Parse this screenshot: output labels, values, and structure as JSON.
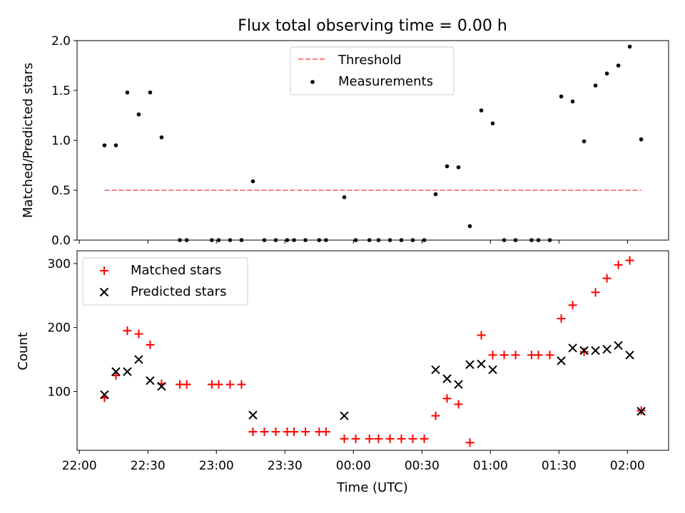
{
  "chart_data": [
    {
      "type": "scatter",
      "title": "Flux total observing time = 0.00 h",
      "ylabel": "Matched/Predicted stars",
      "xlim": [
        "21:59",
        "02:18"
      ],
      "ylim": [
        0,
        2.0
      ],
      "yticks": [
        "0.0",
        "0.5",
        "1.0",
        "1.5",
        "2.0"
      ],
      "legend_position": "top-center",
      "threshold": {
        "name": "Threshold",
        "color": "#ff7f7f",
        "style": "dashed",
        "y": 0.5,
        "x_start": "22:11",
        "x_end": "02:06"
      },
      "series": [
        {
          "name": "Measurements",
          "color": "#000000",
          "marker": "dot",
          "points": [
            [
              "22:11",
              0.95
            ],
            [
              "22:16",
              0.95
            ],
            [
              "22:21",
              1.48
            ],
            [
              "22:26",
              1.26
            ],
            [
              "22:31",
              1.48
            ],
            [
              "22:36",
              1.03
            ],
            [
              "22:44",
              0.0
            ],
            [
              "22:47",
              0.0
            ],
            [
              "22:58",
              0.0
            ],
            [
              "23:01",
              0.0
            ],
            [
              "23:06",
              0.0
            ],
            [
              "23:11",
              0.0
            ],
            [
              "23:16",
              0.59
            ],
            [
              "23:21",
              0.0
            ],
            [
              "23:26",
              0.0
            ],
            [
              "23:31",
              0.0
            ],
            [
              "23:34",
              0.0
            ],
            [
              "23:39",
              0.0
            ],
            [
              "23:45",
              0.0
            ],
            [
              "23:48",
              0.0
            ],
            [
              "23:56",
              0.43
            ],
            [
              "24:01",
              0.0
            ],
            [
              "24:07",
              0.0
            ],
            [
              "24:11",
              0.0
            ],
            [
              "24:16",
              0.0
            ],
            [
              "24:21",
              0.0
            ],
            [
              "24:26",
              0.0
            ],
            [
              "24:31",
              0.0
            ],
            [
              "24:36",
              0.46
            ],
            [
              "24:41",
              0.74
            ],
            [
              "24:46",
              0.73
            ],
            [
              "24:51",
              0.14
            ],
            [
              "24:56",
              1.3
            ],
            [
              "25:01",
              1.17
            ],
            [
              "25:06",
              0.0
            ],
            [
              "25:11",
              0.0
            ],
            [
              "25:18",
              0.0
            ],
            [
              "25:21",
              0.0
            ],
            [
              "25:26",
              0.0
            ],
            [
              "25:31",
              1.44
            ],
            [
              "25:36",
              1.39
            ],
            [
              "25:41",
              0.99
            ],
            [
              "25:46",
              1.55
            ],
            [
              "25:51",
              1.67
            ],
            [
              "25:56",
              1.75
            ],
            [
              "26:01",
              1.94
            ],
            [
              "26:06",
              1.01
            ]
          ]
        }
      ]
    },
    {
      "type": "scatter",
      "xlabel": "Time (UTC)",
      "ylabel": "Count",
      "xlim": [
        "21:59",
        "02:18"
      ],
      "ylim": [
        8,
        320
      ],
      "xticks": [
        "22:00",
        "22:30",
        "23:00",
        "23:30",
        "00:00",
        "00:30",
        "01:00",
        "01:30",
        "02:00"
      ],
      "yticks": [
        "100",
        "200",
        "300"
      ],
      "legend_position": "top-left",
      "series": [
        {
          "name": "Matched stars",
          "color": "#ff0000",
          "marker": "plus",
          "points": [
            [
              "22:11",
              90
            ],
            [
              "22:16",
              125
            ],
            [
              "22:21",
              195
            ],
            [
              "22:26",
              190
            ],
            [
              "22:31",
              173
            ],
            [
              "22:36",
              112
            ],
            [
              "22:44",
              111
            ],
            [
              "22:47",
              111
            ],
            [
              "22:58",
              111
            ],
            [
              "23:01",
              111
            ],
            [
              "23:06",
              111
            ],
            [
              "23:11",
              111
            ],
            [
              "23:16",
              37
            ],
            [
              "23:21",
              37
            ],
            [
              "23:26",
              37
            ],
            [
              "23:31",
              37
            ],
            [
              "23:34",
              37
            ],
            [
              "23:39",
              37
            ],
            [
              "23:45",
              37
            ],
            [
              "23:48",
              37
            ],
            [
              "23:56",
              26
            ],
            [
              "24:01",
              26
            ],
            [
              "24:07",
              26
            ],
            [
              "24:11",
              26
            ],
            [
              "24:16",
              26
            ],
            [
              "24:21",
              26
            ],
            [
              "24:26",
              26
            ],
            [
              "24:31",
              26
            ],
            [
              "24:36",
              62
            ],
            [
              "24:41",
              89
            ],
            [
              "24:46",
              80
            ],
            [
              "24:51",
              20
            ],
            [
              "24:56",
              188
            ],
            [
              "25:01",
              157
            ],
            [
              "25:06",
              157
            ],
            [
              "25:11",
              157
            ],
            [
              "25:18",
              157
            ],
            [
              "25:21",
              157
            ],
            [
              "25:26",
              157
            ],
            [
              "25:31",
              214
            ],
            [
              "25:36",
              235
            ],
            [
              "25:41",
              162
            ],
            [
              "25:46",
              255
            ],
            [
              "25:51",
              277
            ],
            [
              "25:56",
              298
            ],
            [
              "26:01",
              305
            ],
            [
              "26:06",
              70
            ]
          ]
        },
        {
          "name": "Predicted stars",
          "color": "#000000",
          "marker": "x",
          "points": [
            [
              "22:11",
              95
            ],
            [
              "22:16",
              131
            ],
            [
              "22:21",
              131
            ],
            [
              "22:26",
              150
            ],
            [
              "22:31",
              117
            ],
            [
              "22:36",
              108
            ],
            [
              "23:16",
              63
            ],
            [
              "23:56",
              62
            ],
            [
              "24:36",
              134
            ],
            [
              "24:41",
              120
            ],
            [
              "24:46",
              111
            ],
            [
              "24:51",
              142
            ],
            [
              "24:56",
              143
            ],
            [
              "25:01",
              134
            ],
            [
              "25:31",
              148
            ],
            [
              "25:36",
              168
            ],
            [
              "25:41",
              164
            ],
            [
              "25:46",
              164
            ],
            [
              "25:51",
              166
            ],
            [
              "25:56",
              172
            ],
            [
              "26:01",
              157
            ],
            [
              "26:06",
              69
            ]
          ]
        }
      ]
    }
  ]
}
